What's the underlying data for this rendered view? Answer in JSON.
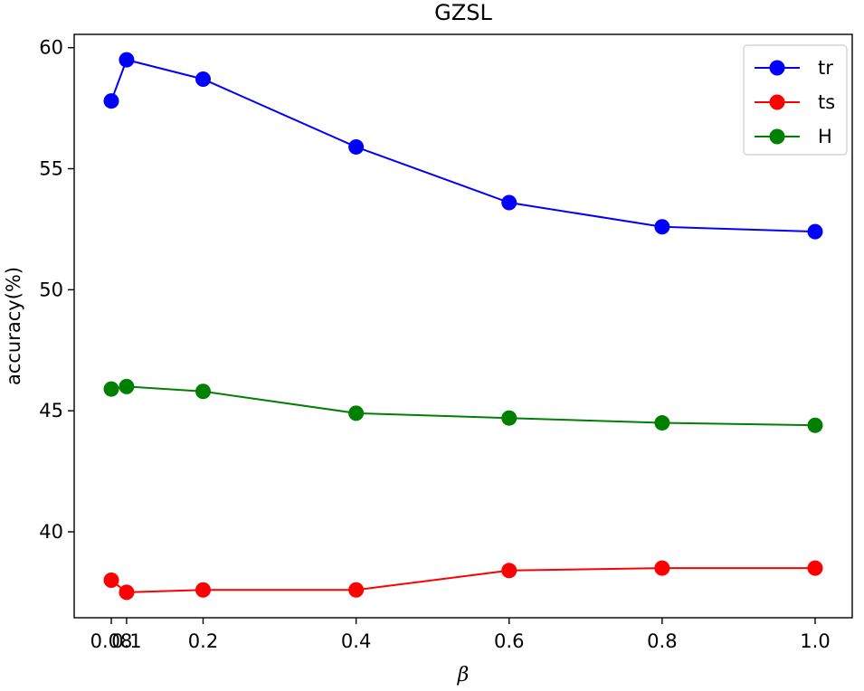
{
  "chart_data": {
    "type": "line",
    "title": "GZSL",
    "xlabel": "β",
    "ylabel": "accuracy(%)",
    "x": [
      0.08,
      0.1,
      0.2,
      0.4,
      0.6,
      0.8,
      1.0
    ],
    "x_tick_labels": [
      "0.08",
      "0.1",
      "0.2",
      "0.4",
      "0.6",
      "0.8",
      "1.0"
    ],
    "y_ticks": [
      40,
      45,
      50,
      55,
      60
    ],
    "y_tick_labels": [
      "40",
      "45",
      "50",
      "55",
      "60"
    ],
    "xlim": [
      0.0315,
      1.0485
    ],
    "ylim": [
      36.45,
      60.55
    ],
    "legend_position": "top-right",
    "grid": false,
    "series": [
      {
        "name": "tr",
        "color": "#0000ff",
        "values": [
          57.8,
          59.5,
          58.7,
          55.9,
          53.6,
          52.6,
          52.4
        ]
      },
      {
        "name": "ts",
        "color": "#ff0000",
        "values": [
          38.0,
          37.5,
          37.6,
          37.6,
          38.4,
          38.5,
          38.5
        ]
      },
      {
        "name": "H",
        "color": "#008000",
        "values": [
          45.9,
          46.0,
          45.8,
          44.9,
          44.7,
          44.5,
          44.4
        ]
      }
    ]
  }
}
